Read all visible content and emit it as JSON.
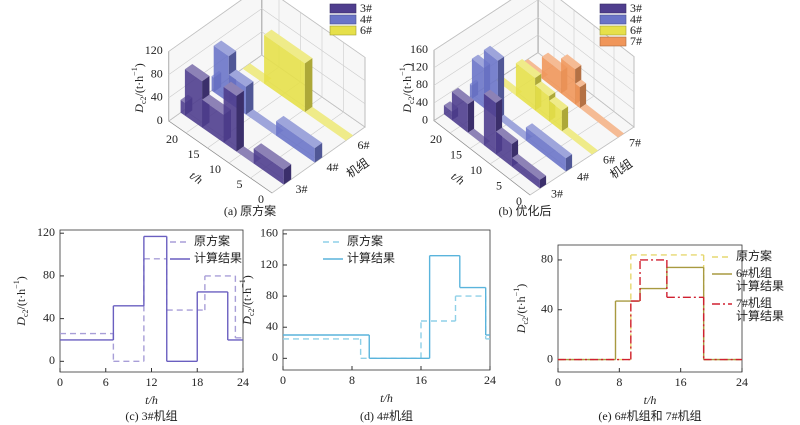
{
  "chart_data": [
    {
      "type": "step3d",
      "caption": "(a) 原方案",
      "xlabel": "t/h",
      "ylabel": "机组",
      "zlabel": {
        "base": "D",
        "sub": "c2",
        "unit": "/(t·h",
        "sup": "−1",
        "close": ")"
      },
      "xlim": [
        0,
        24
      ],
      "xticks": [
        0,
        5,
        10,
        15,
        20
      ],
      "categories": [
        "3#",
        "4#",
        "6#"
      ],
      "zlim": [
        0,
        120
      ],
      "zticks": [
        0,
        40,
        80,
        120
      ],
      "series": [
        {
          "name": "3#",
          "color": "#4f3e8e",
          "x": [
            0,
            7,
            11,
            14,
            19,
            23
          ],
          "values": [
            26,
            0,
            96,
            48,
            80,
            22
          ]
        },
        {
          "name": "4#",
          "color": "#6a74c8",
          "x": [
            0,
            9,
            16,
            20,
            23.5
          ],
          "values": [
            25,
            0,
            48,
            80,
            25
          ]
        },
        {
          "name": "6#",
          "color": "#e6e04a",
          "x": [
            0,
            9.5,
            19
          ],
          "values": [
            0,
            84,
            0
          ]
        }
      ]
    },
    {
      "type": "step3d",
      "caption": "(b) 优化后",
      "xlabel": "t/h",
      "ylabel": "机组",
      "zlabel": {
        "base": "D",
        "sub": "c2",
        "unit": "/(t·h",
        "sup": "−1",
        "close": ")"
      },
      "xlim": [
        0,
        24
      ],
      "xticks": [
        0,
        5,
        10,
        15,
        20
      ],
      "categories": [
        "3#",
        "4#",
        "6#",
        "7#"
      ],
      "zlim": [
        0,
        160
      ],
      "zticks": [
        0,
        40,
        80,
        120,
        160
      ],
      "series": [
        {
          "name": "3#",
          "color": "#4f3e8e",
          "x": [
            0,
            7,
            11,
            14,
            18,
            22
          ],
          "values": [
            20,
            52,
            117,
            0,
            65,
            20
          ]
        },
        {
          "name": "4#",
          "color": "#6a74c8",
          "x": [
            0,
            10,
            17,
            20.5,
            23.5
          ],
          "values": [
            30,
            0,
            132,
            91,
            30
          ]
        },
        {
          "name": "6#",
          "color": "#e6e04a",
          "x": [
            0,
            7.5,
            10.7,
            14.2,
            19
          ],
          "values": [
            0,
            47,
            57,
            74,
            0
          ]
        },
        {
          "name": "7#",
          "color": "#f0965a",
          "x": [
            0,
            9.5,
            10.7,
            14.2,
            19
          ],
          "values": [
            0,
            47,
            80,
            50,
            0
          ]
        }
      ]
    },
    {
      "type": "step",
      "caption": "(c) 3#机组",
      "xlabel": "t/h",
      "ylabel": {
        "base": "D",
        "sub": "c2",
        "unit": "/(t·h",
        "sup": "−1",
        "close": ")"
      },
      "xlim": [
        0,
        24
      ],
      "xticks": [
        0,
        6,
        12,
        18,
        24
      ],
      "ylim": [
        -10,
        123
      ],
      "yticks": [
        0,
        40,
        80,
        120
      ],
      "legend": "upper right",
      "series": [
        {
          "name": "原方案",
          "color": "#a89ed8",
          "linestyle": "dashed",
          "x": [
            0,
            7,
            11,
            14,
            19,
            23
          ],
          "values": [
            26,
            0,
            96,
            48,
            80,
            22
          ]
        },
        {
          "name": "计算结果",
          "color": "#6a5fc0",
          "linestyle": "solid",
          "x": [
            0,
            7,
            11,
            14,
            18,
            22
          ],
          "values": [
            20,
            52,
            117,
            0,
            65,
            20
          ]
        }
      ]
    },
    {
      "type": "step",
      "caption": "(d) 4#机组",
      "xlabel": "t/h",
      "ylabel": {
        "base": "D",
        "sub": "c2",
        "unit": "/(t·h",
        "sup": "−1",
        "close": ")"
      },
      "xlim": [
        0,
        24
      ],
      "xticks": [
        0,
        8,
        16,
        24
      ],
      "ylim": [
        -15,
        165
      ],
      "yticks": [
        0,
        40,
        80,
        120,
        160
      ],
      "legend": "upper left",
      "series": [
        {
          "name": "原方案",
          "color": "#8fd0e8",
          "linestyle": "dashed",
          "x": [
            0,
            9,
            16,
            20,
            23.5
          ],
          "values": [
            25,
            0,
            48,
            80,
            25
          ]
        },
        {
          "name": "计算结果",
          "color": "#5ab4dc",
          "linestyle": "solid",
          "x": [
            0,
            10,
            17,
            20.5,
            23.5
          ],
          "values": [
            30,
            0,
            132,
            91,
            30
          ]
        }
      ]
    },
    {
      "type": "step",
      "caption": "(e) 6#机组和 7#机组",
      "xlabel": "t/h",
      "ylabel": {
        "base": "D",
        "sub": "c2",
        "unit": "/(t·h",
        "sup": "−1",
        "close": ")"
      },
      "xlim": [
        0,
        24
      ],
      "xticks": [
        0,
        8,
        16,
        24
      ],
      "ylim": [
        -10,
        92
      ],
      "yticks": [
        0,
        40,
        80
      ],
      "legend": "upper right",
      "series": [
        {
          "name": "原方案",
          "color": "#e6d870",
          "linestyle": "dashed",
          "x": [
            0,
            9.5,
            19
          ],
          "values": [
            0,
            84,
            0
          ]
        },
        {
          "name": "6#机组\n计算结果",
          "color": "#a89a40",
          "linestyle": "solid",
          "x": [
            0,
            7.5,
            10.7,
            14.2,
            19
          ],
          "values": [
            0,
            47,
            57,
            74,
            0
          ]
        },
        {
          "name": "7#机组\n计算结果",
          "color": "#d02030",
          "linestyle": "dashdot",
          "x": [
            0,
            9.5,
            10.7,
            14.2,
            19
          ],
          "values": [
            0,
            47,
            80,
            50,
            0
          ]
        }
      ]
    }
  ]
}
